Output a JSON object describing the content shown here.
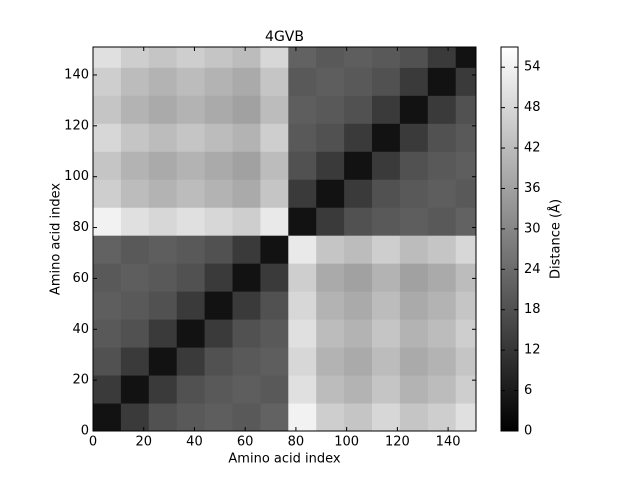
{
  "chart_data": {
    "type": "heatmap",
    "title": "4GVB",
    "x_label": "Amino acid index",
    "y_label": "Amino acid index",
    "xbins": [
      0,
      11,
      22,
      33,
      44,
      55,
      66,
      77,
      88,
      99,
      110,
      121,
      132,
      143,
      151
    ],
    "ybins": [
      0,
      11,
      22,
      33,
      44,
      55,
      66,
      77,
      88,
      99,
      110,
      121,
      132,
      143,
      151
    ],
    "values": [
      [
        4,
        13,
        18,
        20,
        21,
        20,
        22,
        54,
        46,
        44,
        48,
        44,
        46,
        50
      ],
      [
        13,
        4,
        13,
        18,
        20,
        21,
        20,
        50,
        42,
        40,
        44,
        40,
        42,
        46
      ],
      [
        18,
        13,
        4,
        13,
        18,
        20,
        21,
        48,
        40,
        38,
        42,
        38,
        40,
        44
      ],
      [
        20,
        18,
        13,
        4,
        13,
        18,
        20,
        50,
        42,
        40,
        44,
        40,
        42,
        46
      ],
      [
        21,
        20,
        18,
        13,
        4,
        13,
        18,
        48,
        40,
        38,
        42,
        38,
        40,
        44
      ],
      [
        20,
        21,
        20,
        18,
        13,
        4,
        13,
        46,
        38,
        36,
        40,
        36,
        38,
        42
      ],
      [
        22,
        20,
        21,
        20,
        18,
        13,
        4,
        52,
        44,
        42,
        46,
        42,
        44,
        48
      ],
      [
        54,
        50,
        48,
        50,
        48,
        46,
        52,
        4,
        13,
        18,
        20,
        21,
        20,
        22
      ],
      [
        46,
        42,
        40,
        42,
        40,
        38,
        44,
        13,
        4,
        13,
        18,
        20,
        21,
        20
      ],
      [
        44,
        40,
        38,
        40,
        38,
        36,
        42,
        18,
        13,
        4,
        13,
        18,
        20,
        21
      ],
      [
        48,
        44,
        42,
        44,
        42,
        40,
        46,
        20,
        18,
        13,
        4,
        13,
        18,
        20
      ],
      [
        44,
        40,
        38,
        40,
        38,
        36,
        42,
        21,
        20,
        18,
        13,
        4,
        13,
        18
      ],
      [
        46,
        42,
        40,
        42,
        40,
        38,
        44,
        20,
        21,
        20,
        18,
        13,
        4,
        13
      ],
      [
        50,
        46,
        44,
        46,
        44,
        42,
        48,
        22,
        20,
        21,
        20,
        18,
        13,
        4
      ]
    ],
    "xlim": [
      0,
      151
    ],
    "ylim": [
      0,
      151
    ],
    "xticks": [
      0,
      20,
      40,
      60,
      80,
      100,
      120,
      140
    ],
    "yticks": [
      0,
      20,
      40,
      60,
      80,
      100,
      120,
      140
    ],
    "colormap": "gray",
    "colorbar_label": "Distance (Å)",
    "clim": [
      0,
      57
    ],
    "cticks": [
      0,
      6,
      12,
      18,
      24,
      30,
      36,
      42,
      48,
      54
    ]
  }
}
